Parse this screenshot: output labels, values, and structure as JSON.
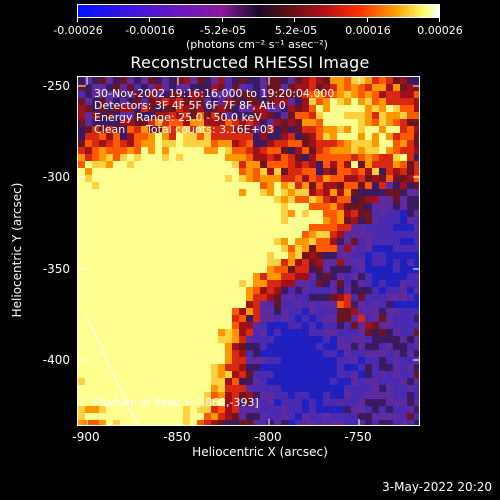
{
  "colorbar": {
    "tick_labels": [
      "-0.00026",
      "-0.00016",
      "-5.2e-05",
      "5.2e-05",
      "0.00016",
      "0.00026"
    ],
    "units": "(photons cm⁻² s⁻¹ asec⁻²)"
  },
  "image": {
    "title": "Reconstructed RHESSI Image",
    "date_range": "30-Nov-2002 19:16:16.000 to 19:20:04.000",
    "detectors": "Detectors: 3F 4F 5F 6F 7F 8F, Att 0",
    "energy_range": "Energy Range: 25.0 - 50.0 keV",
    "algorithm": "Clean",
    "total_counts": "Total counts: 3.16E+03",
    "peak_position": "Position of Peak = [-862,-393]"
  },
  "axes": {
    "x_title": "Heliocentric X (arcsec)",
    "y_title": "Heliocentric Y (arcsec)",
    "x_ticks": [
      "-900",
      "-850",
      "-800",
      "-750"
    ],
    "y_ticks": [
      "-250",
      "-300",
      "-350",
      "-400"
    ],
    "x_range": [
      -905,
      -715
    ],
    "y_range": [
      -435,
      -245
    ]
  },
  "footer": {
    "date": "3-May-2022 20:20"
  },
  "colors": {
    "background": "#000000",
    "text": "#ffffff"
  }
}
